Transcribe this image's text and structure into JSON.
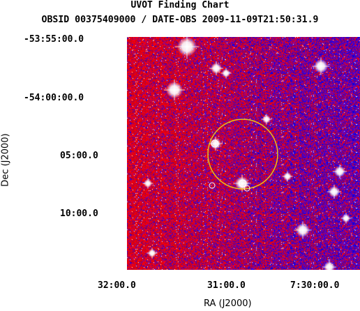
{
  "header": {
    "title": "UVOT Finding Chart",
    "subtitle": "OBSID 00375409000 / DATE-OBS 2009-11-09T21:50:31.9"
  },
  "axes": {
    "dec_label": "Dec (J2000)",
    "ra_label": "RA (J2000)",
    "dec_ticks": [
      "-53:55:00.0",
      "-54:00:00.0",
      "05:00.0",
      "10:00.0"
    ],
    "ra_ticks": [
      "32:00.0",
      "31:00.0",
      "7:30:00.0"
    ]
  },
  "colors": {
    "background_low": "#ff0000",
    "background_high": "#0000ff",
    "source_circle": "#e8c31a",
    "marker_small": "#ffffff"
  },
  "image": {
    "type": "sky-image",
    "colormap": "red-blue-white"
  }
}
